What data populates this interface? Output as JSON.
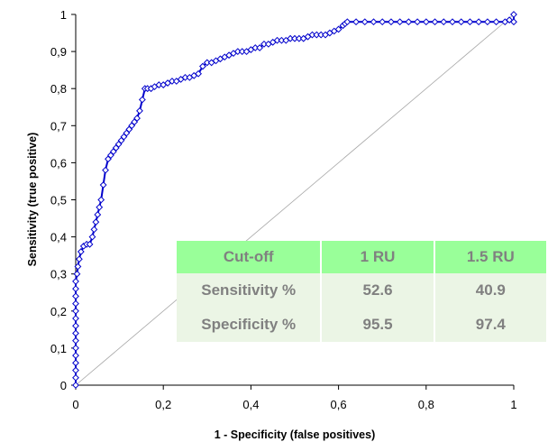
{
  "chart_data": {
    "type": "line",
    "title": "",
    "xlabel": "1 - Specificity (false positives)",
    "ylabel": "Sensitivity (true positive)",
    "xlim": [
      0,
      1
    ],
    "ylim": [
      0,
      1
    ],
    "xticks": [
      "0",
      "0,2",
      "0,4",
      "0,6",
      "0,8",
      "1"
    ],
    "yticks": [
      "0",
      "0,1",
      "0,2",
      "0,3",
      "0,4",
      "0,5",
      "0,6",
      "0,7",
      "0,8",
      "0,9",
      "1"
    ],
    "grid": false,
    "series": [
      {
        "color": "#0000cc",
        "marker": "diamond",
        "x": [
          0.0,
          0.0,
          0.0,
          0.0,
          0.0,
          0.0,
          0.0,
          0.0,
          0.0,
          0.0,
          0.0,
          0.0,
          0.0,
          0.0,
          0.0,
          0.003,
          0.005,
          0.008,
          0.012,
          0.018,
          0.025,
          0.032,
          0.038,
          0.042,
          0.046,
          0.05,
          0.054,
          0.058,
          0.063,
          0.068,
          0.074,
          0.08,
          0.086,
          0.092,
          0.098,
          0.104,
          0.11,
          0.116,
          0.122,
          0.128,
          0.134,
          0.14,
          0.146,
          0.152,
          0.158,
          0.164,
          0.172,
          0.18,
          0.19,
          0.2,
          0.21,
          0.22,
          0.23,
          0.24,
          0.25,
          0.26,
          0.27,
          0.28,
          0.29,
          0.3,
          0.31,
          0.32,
          0.33,
          0.34,
          0.35,
          0.36,
          0.37,
          0.38,
          0.39,
          0.4,
          0.41,
          0.42,
          0.43,
          0.44,
          0.45,
          0.46,
          0.47,
          0.48,
          0.49,
          0.5,
          0.51,
          0.52,
          0.53,
          0.54,
          0.55,
          0.56,
          0.57,
          0.58,
          0.59,
          0.6,
          0.61,
          0.615,
          0.62,
          0.64,
          0.66,
          0.68,
          0.7,
          0.72,
          0.74,
          0.76,
          0.78,
          0.8,
          0.82,
          0.84,
          0.86,
          0.88,
          0.9,
          0.92,
          0.94,
          0.96,
          0.98,
          0.99,
          1.0,
          1.0
        ],
        "y": [
          0.0,
          0.02,
          0.04,
          0.06,
          0.08,
          0.1,
          0.12,
          0.14,
          0.16,
          0.18,
          0.2,
          0.22,
          0.24,
          0.26,
          0.28,
          0.3,
          0.32,
          0.34,
          0.36,
          0.375,
          0.38,
          0.38,
          0.4,
          0.42,
          0.44,
          0.46,
          0.48,
          0.5,
          0.54,
          0.58,
          0.61,
          0.62,
          0.63,
          0.64,
          0.65,
          0.66,
          0.67,
          0.68,
          0.69,
          0.7,
          0.71,
          0.72,
          0.74,
          0.77,
          0.8,
          0.8,
          0.8,
          0.805,
          0.81,
          0.81,
          0.815,
          0.82,
          0.82,
          0.825,
          0.83,
          0.83,
          0.835,
          0.84,
          0.86,
          0.87,
          0.87,
          0.875,
          0.88,
          0.885,
          0.89,
          0.895,
          0.9,
          0.9,
          0.9,
          0.905,
          0.91,
          0.91,
          0.92,
          0.92,
          0.925,
          0.93,
          0.93,
          0.93,
          0.935,
          0.935,
          0.935,
          0.935,
          0.94,
          0.945,
          0.945,
          0.945,
          0.945,
          0.95,
          0.955,
          0.96,
          0.97,
          0.975,
          0.98,
          0.98,
          0.98,
          0.98,
          0.98,
          0.98,
          0.98,
          0.98,
          0.98,
          0.98,
          0.98,
          0.98,
          0.98,
          0.98,
          0.98,
          0.98,
          0.98,
          0.98,
          0.98,
          0.985,
          0.98,
          1.0
        ]
      },
      {
        "color": "#a6a6a6",
        "marker": "none",
        "x": [
          0,
          1
        ],
        "y": [
          0,
          1
        ]
      }
    ]
  },
  "table": {
    "header": [
      "Cut-off",
      "1 RU",
      "1.5 RU"
    ],
    "rows": [
      [
        "Sensitivity %",
        "52.6",
        "40.9"
      ],
      [
        "Specificity %",
        "95.5",
        "97.4"
      ]
    ],
    "header_bg": "#99ff99",
    "row_bg": "#ebf5e5",
    "text_color": "#808080"
  }
}
